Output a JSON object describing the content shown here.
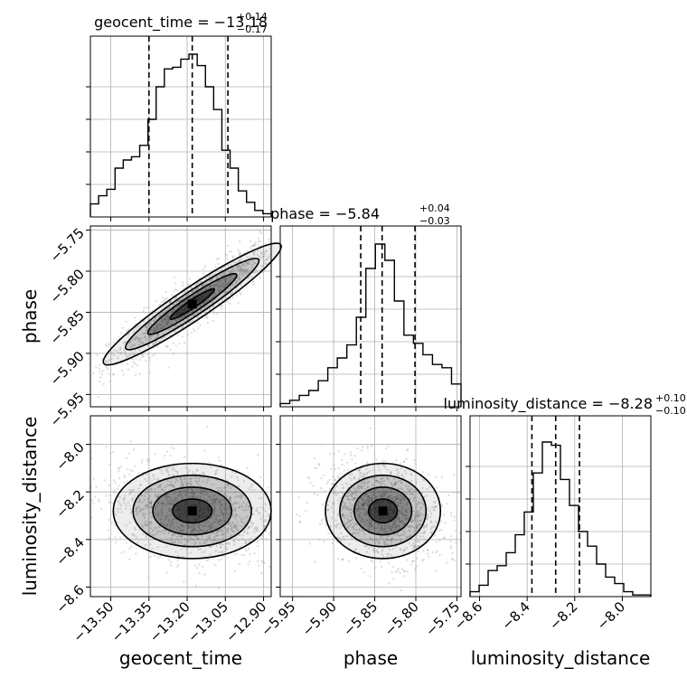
{
  "chart_data": {
    "type": "corner",
    "parameters": [
      {
        "name": "geocent_time",
        "label": "geocent_time",
        "median": -13.18,
        "plus": 0.14,
        "minus": 0.17,
        "title_main": "geocent_time = −13.18",
        "title_sup": "+0.14",
        "title_sub": "−0.17",
        "range": [
          -13.58,
          -12.87
        ],
        "ticks": [
          -13.5,
          -13.35,
          -13.2,
          -13.05,
          -12.9
        ],
        "tick_labels": [
          "−13.50",
          "−13.35",
          "−13.20",
          "−13.05",
          "−12.90"
        ],
        "quantiles": [
          -13.35,
          -13.18,
          -13.04
        ]
      },
      {
        "name": "phase",
        "label": "phase",
        "median": -5.84,
        "plus": 0.04,
        "minus": 0.03,
        "title_main": "phase = −5.84",
        "title_sup": "+0.04",
        "title_sub": "−0.03",
        "range": [
          -5.965,
          -5.745
        ],
        "ticks": [
          -5.95,
          -5.9,
          -5.85,
          -5.8,
          -5.75
        ],
        "tick_labels": [
          "−5.95",
          "−5.90",
          "−5.85",
          "−5.80",
          "−5.75"
        ],
        "quantiles": [
          -5.867,
          -5.841,
          -5.801
        ]
      },
      {
        "name": "luminosity_distance",
        "label": "luminosity_distance",
        "median": -8.28,
        "plus": 0.1,
        "minus": 0.1,
        "title_main": "luminosity_distance = −8.28",
        "title_sup": "+0.10",
        "title_sub": "−0.10",
        "range": [
          -8.64,
          -7.88
        ],
        "ticks": [
          -8.6,
          -8.4,
          -8.2,
          -8.0
        ],
        "tick_labels": [
          "−8.6",
          "−8.4",
          "−8.2",
          "−8.0"
        ],
        "quantiles": [
          -8.38,
          -8.28,
          -8.18
        ]
      }
    ],
    "histograms": {
      "geocent_time": [
        0.08,
        0.13,
        0.17,
        0.3,
        0.35,
        0.37,
        0.44,
        0.6,
        0.8,
        0.91,
        0.92,
        0.97,
        1.0,
        0.93,
        0.8,
        0.66,
        0.41,
        0.3,
        0.16,
        0.09,
        0.04,
        0.02
      ],
      "phase": [
        0.02,
        0.04,
        0.07,
        0.1,
        0.16,
        0.24,
        0.3,
        0.38,
        0.55,
        0.85,
        1.0,
        0.9,
        0.65,
        0.44,
        0.39,
        0.32,
        0.26,
        0.24,
        0.14
      ],
      "luminosity_distance": [
        0.03,
        0.07,
        0.16,
        0.19,
        0.27,
        0.38,
        0.52,
        0.76,
        0.95,
        0.93,
        0.72,
        0.56,
        0.4,
        0.31,
        0.2,
        0.12,
        0.08,
        0.03,
        0.01,
        0.01
      ]
    },
    "contour_levels": [
      "0.5σ",
      "1σ",
      "1.5σ",
      "2σ"
    ],
    "colors": {
      "hist": "#000000",
      "points": "#8c8c8c",
      "grid": "#b0b0b0"
    }
  }
}
